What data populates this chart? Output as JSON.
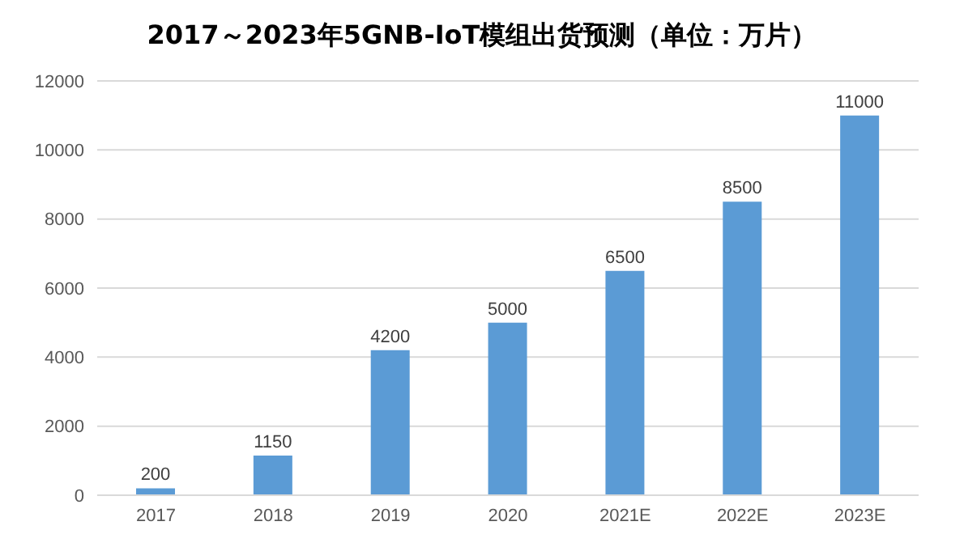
{
  "chart_data": {
    "type": "bar",
    "title": "2017～2023年5GNB-IoT模组出货预测（单位：万片）",
    "categories": [
      "2017",
      "2018",
      "2019",
      "2020",
      "2021E",
      "2022E",
      "2023E"
    ],
    "values": [
      200,
      1150,
      4200,
      5000,
      6500,
      8500,
      11000
    ],
    "color": "#5b9bd5",
    "ylim": [
      0,
      12000
    ],
    "yticks": [
      0,
      2000,
      4000,
      6000,
      8000,
      10000,
      12000
    ],
    "grid": "y",
    "data_labels": true
  }
}
